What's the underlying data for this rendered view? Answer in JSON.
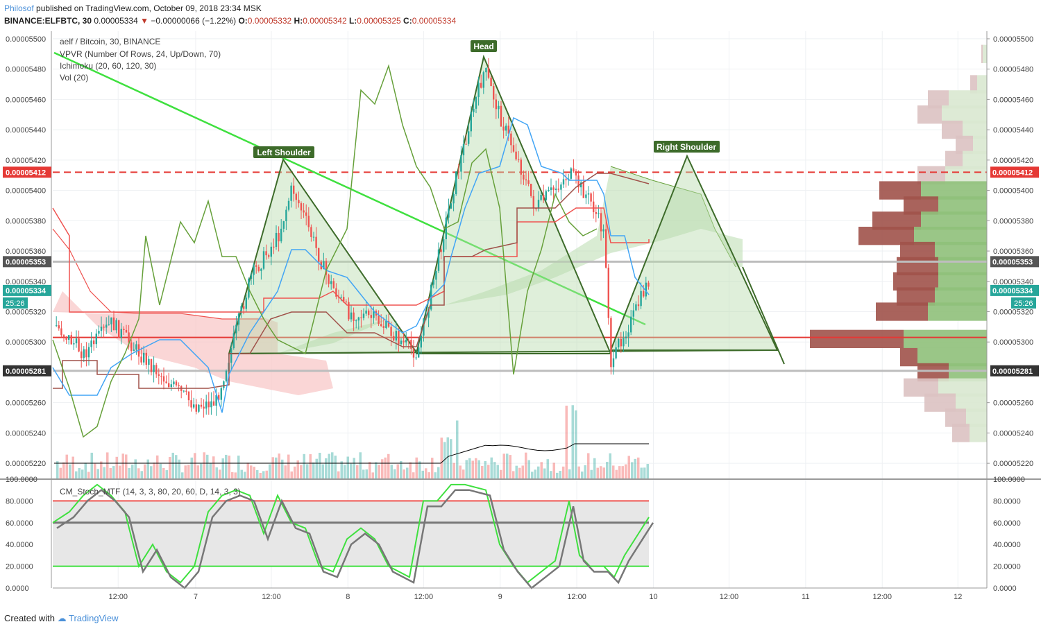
{
  "header": {
    "author": "Philosof",
    "published": "published on TradingView.com, October 09, 2018 23:34 MSK",
    "symbol": "BINANCE:ELFBTC, 30",
    "last": "0.00005334",
    "change_arrow": "▼",
    "change": "−0.00000066 (−1.22%)",
    "o_label": "O:",
    "o": "0.00005332",
    "h_label": "H:",
    "h": "0.00005342",
    "l_label": "L:",
    "l": "0.00005325",
    "c_label": "C:",
    "c": "0.00005334"
  },
  "legend": {
    "pair": "aelf / Bitcoin, 30, BINANCE",
    "vpvr": "VPVR (Number Of Rows, 24, Up/Down, 70)",
    "ichimoku": "Ichimoku (20, 60, 120, 30)",
    "vol": "Vol (20)",
    "stoch": "CM_Stoch_MTF (14, 3, 3, 80, 20, 60, D, 14, 3, 3)"
  },
  "annotations": {
    "left_shoulder": "Left Shoulder",
    "head": "Head",
    "right_shoulder": "Right Shoulder"
  },
  "price_axis": {
    "ticks": [
      "0.00005500",
      "0.00005480",
      "0.00005460",
      "0.00005440",
      "0.00005420",
      "0.00005400",
      "0.00005380",
      "0.00005360",
      "0.00005340",
      "0.00005320",
      "0.00005300",
      "0.00005260",
      "0.00005240",
      "0.00005220"
    ],
    "badges": [
      {
        "value": "0.00005412",
        "color": "#e53935"
      },
      {
        "value": "0.00005353",
        "color": "#555555"
      },
      {
        "value": "0.00005334",
        "color": "#26a69a"
      },
      {
        "value": "0.00005281",
        "color": "#333333"
      }
    ],
    "countdown": "25:26"
  },
  "stoch_axis": {
    "ticks": [
      "100.0000",
      "80.0000",
      "60.0000",
      "40.0000",
      "20.0000",
      "0.0000"
    ]
  },
  "time_axis": {
    "labels": [
      "12:00",
      "7",
      "12:00",
      "8",
      "12:00",
      "9",
      "12:00",
      "10",
      "12:00",
      "11",
      "12:00",
      "12"
    ]
  },
  "colors": {
    "up": "#26a69a",
    "down": "#ef5350",
    "pattern": "#3d6b2a",
    "trendline": "#3fe03f",
    "kijun": "#ef5350",
    "tenkan": "#42a5f5",
    "chikou": "#66a03a"
  },
  "chart_data": {
    "type": "candlestick",
    "ylim": [
      5.21e-05,
      5.505e-05
    ],
    "stoch_ylim": [
      0,
      100
    ],
    "horizontal_levels": [
      {
        "value": 5.412e-05,
        "style": "dashed",
        "color": "#e53935"
      },
      {
        "value": 5.353e-05,
        "style": "solid",
        "color": "#bdbdbd"
      },
      {
        "value": 5.303e-05,
        "style": "solid",
        "color": "#e53935"
      },
      {
        "value": 5.281e-05,
        "style": "solid",
        "color": "#bdbdbd"
      }
    ],
    "stoch_levels": [
      80,
      60,
      20
    ],
    "volume_profile": [
      {
        "price": 5.49e-05,
        "up": 6,
        "down": 2
      },
      {
        "price": 5.47e-05,
        "up": 14,
        "down": 10
      },
      {
        "price": 5.46e-05,
        "up": 55,
        "down": 30
      },
      {
        "price": 5.45e-05,
        "up": 65,
        "down": 35
      },
      {
        "price": 5.44e-05,
        "up": 35,
        "down": 30
      },
      {
        "price": 5.43e-05,
        "up": 20,
        "down": 25
      },
      {
        "price": 5.42e-05,
        "up": 35,
        "down": 25
      },
      {
        "price": 5.41e-05,
        "up": 60,
        "down": 40
      },
      {
        "price": 5.4e-05,
        "up": 95,
        "down": 60
      },
      {
        "price": 5.39e-05,
        "up": 70,
        "down": 50
      },
      {
        "price": 5.38e-05,
        "up": 95,
        "down": 70
      },
      {
        "price": 5.37e-05,
        "up": 105,
        "down": 80
      },
      {
        "price": 5.36e-05,
        "up": 75,
        "down": 50
      },
      {
        "price": 5.35e-05,
        "up": 70,
        "down": 60
      },
      {
        "price": 5.34e-05,
        "up": 70,
        "down": 65
      },
      {
        "price": 5.33e-05,
        "up": 75,
        "down": 55
      },
      {
        "price": 5.32e-05,
        "up": 85,
        "down": 75
      },
      {
        "price": 5.302e-05,
        "up": 120,
        "down": 135
      },
      {
        "price": 5.29e-05,
        "up": 100,
        "down": 25
      },
      {
        "price": 5.28e-05,
        "up": 55,
        "down": 45
      },
      {
        "price": 5.27e-05,
        "up": 70,
        "down": 50
      },
      {
        "price": 5.26e-05,
        "up": 45,
        "down": 45
      },
      {
        "price": 5.25e-05,
        "up": 30,
        "down": 30
      },
      {
        "price": 5.24e-05,
        "up": 25,
        "down": 25
      }
    ]
  }
}
